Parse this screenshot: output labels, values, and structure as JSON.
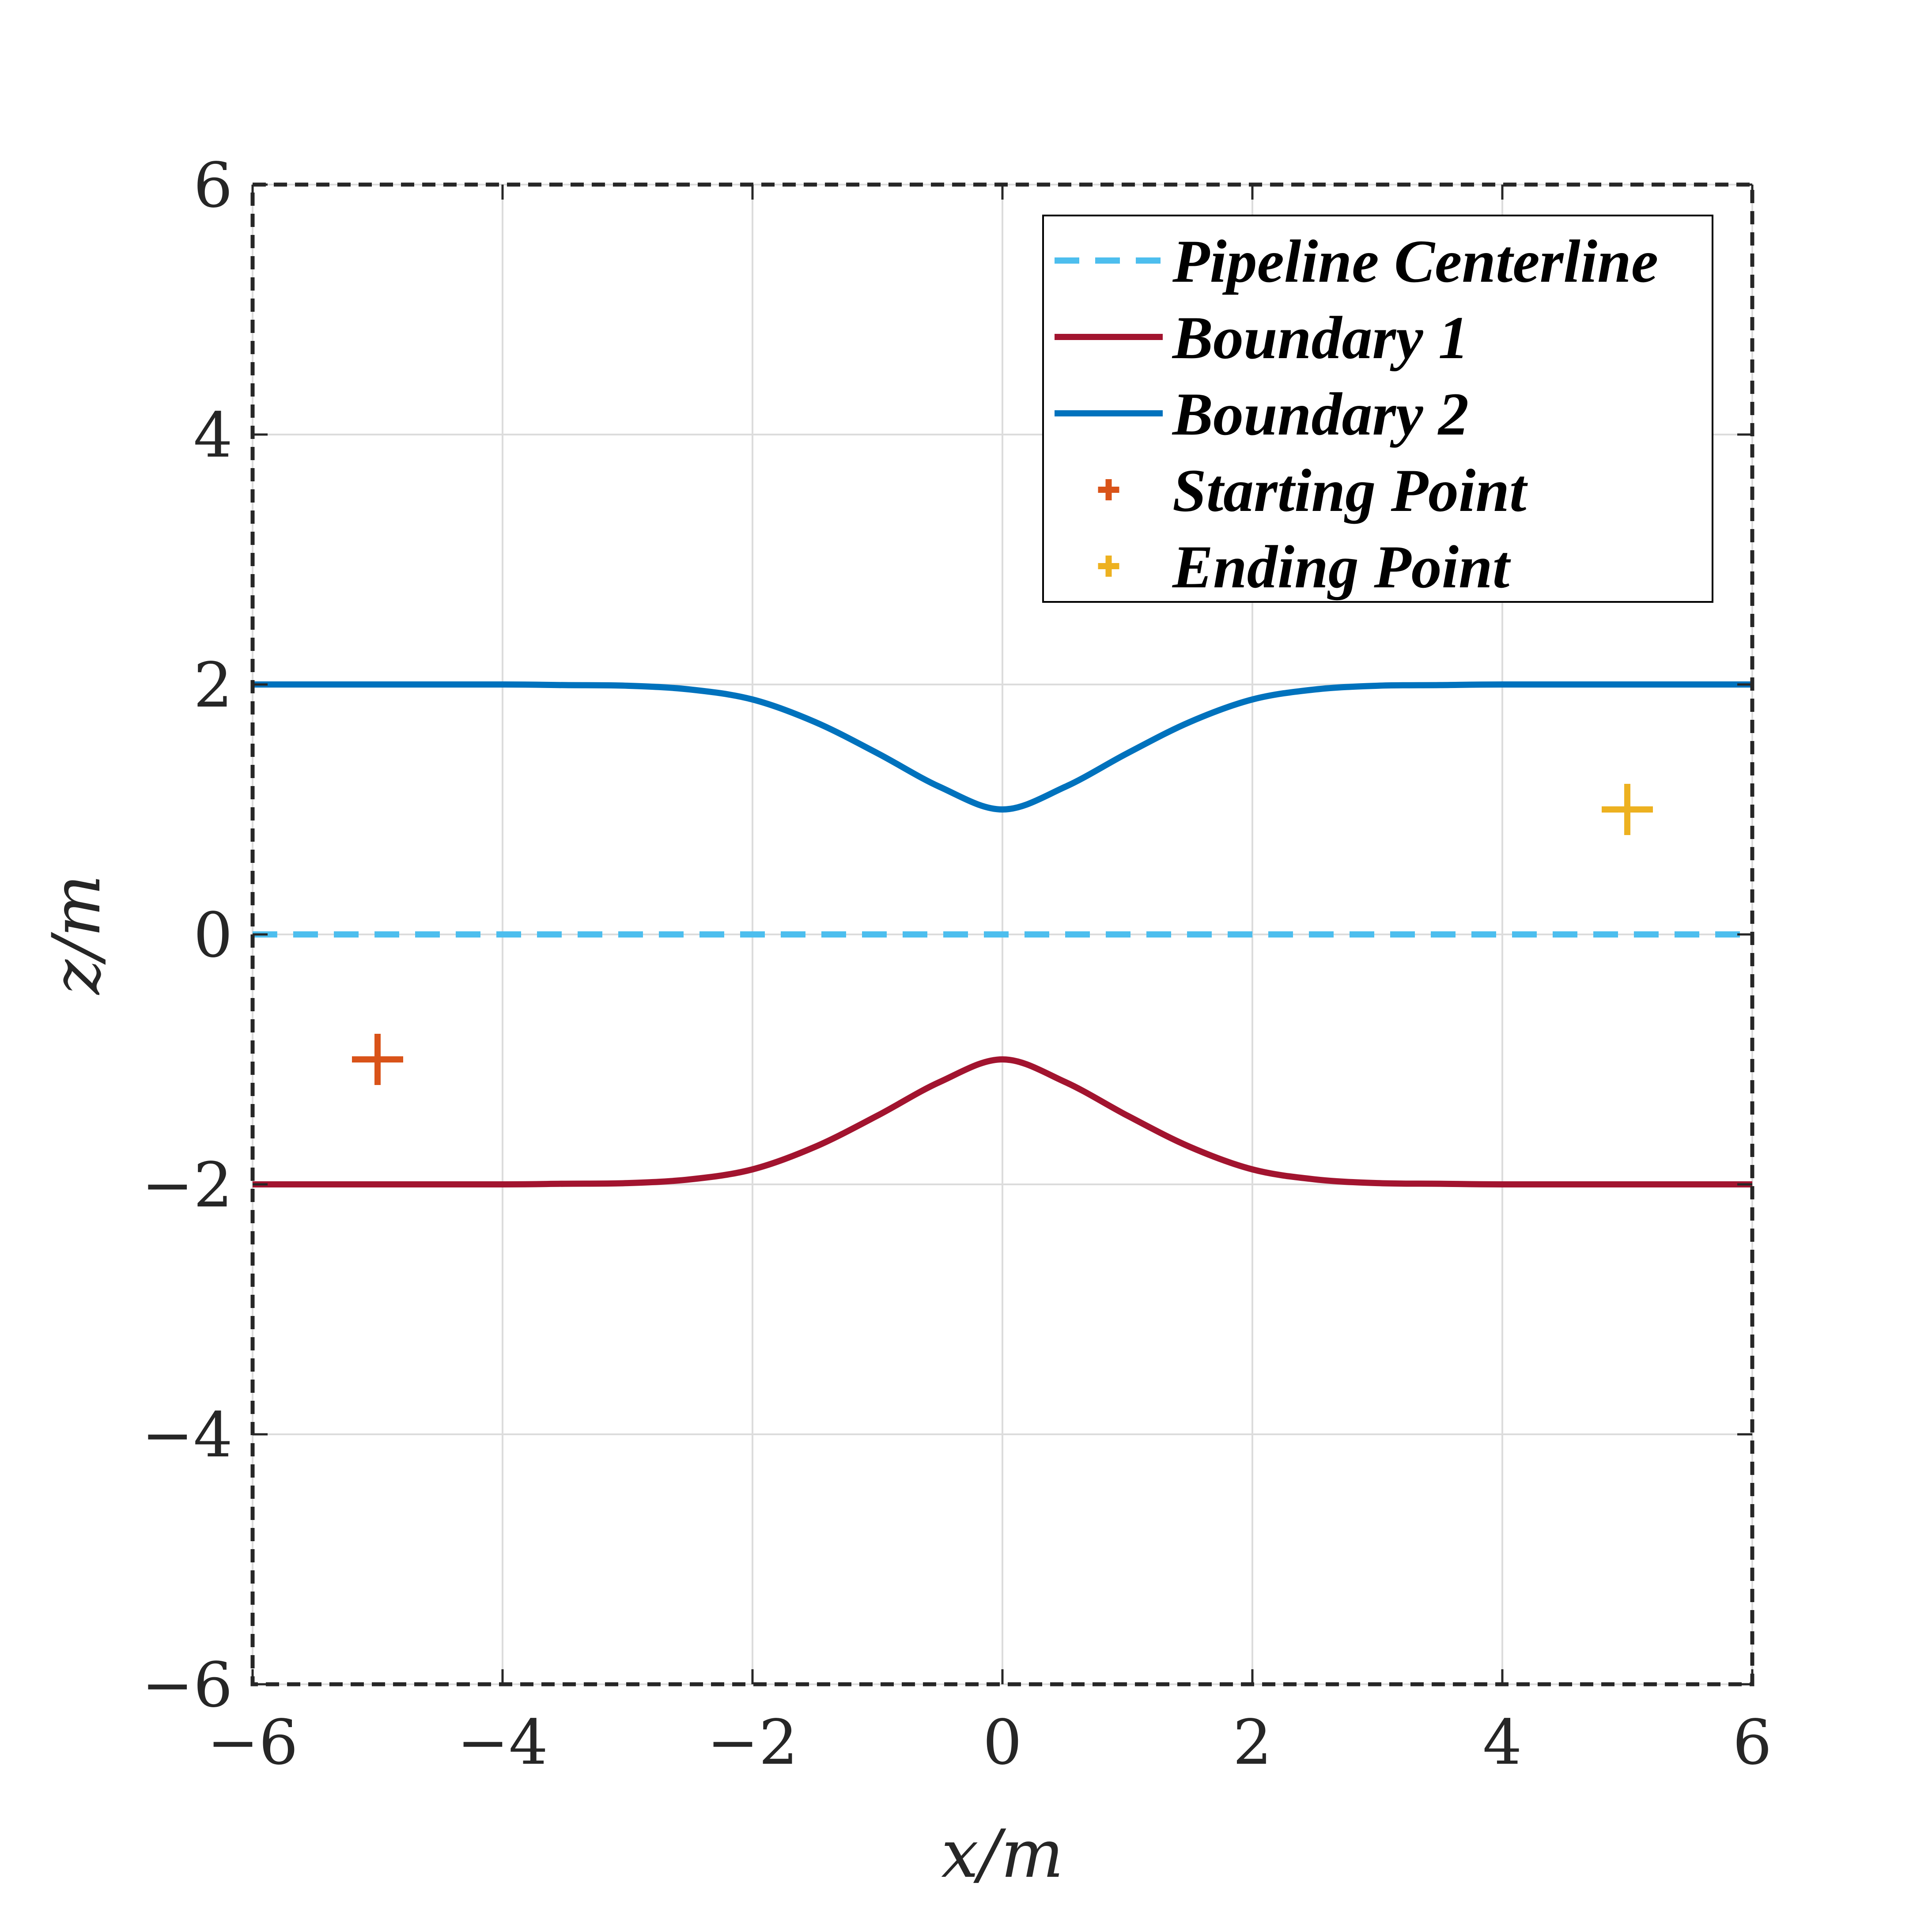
{
  "chart_data": {
    "type": "line",
    "title": "",
    "xlabel": "x/m",
    "ylabel": "z/m",
    "xlim": [
      -6,
      6
    ],
    "ylim": [
      -6,
      6
    ],
    "xticks": [
      -6,
      -4,
      -2,
      0,
      2,
      4,
      6
    ],
    "yticks": [
      -6,
      -4,
      -2,
      0,
      2,
      4,
      6
    ],
    "xtick_labels": [
      "−6",
      "−4",
      "−2",
      "0",
      "2",
      "4",
      "6"
    ],
    "ytick_labels": [
      "−6",
      "−4",
      "−2",
      "0",
      "2",
      "4",
      "6"
    ],
    "grid": true,
    "legend_position": "top-right",
    "series": [
      {
        "name": "Pipeline Centerline",
        "style": "dashed",
        "color": "#4DBEEE",
        "x": [
          -6,
          -5,
          -4,
          -3,
          -2,
          -1,
          0,
          1,
          2,
          3,
          4,
          5,
          6
        ],
        "y": [
          0,
          0,
          0,
          0,
          0,
          0,
          0,
          0,
          0,
          0,
          0,
          0,
          0
        ]
      },
      {
        "name": "Boundary 1",
        "style": "solid",
        "color": "#A2142F",
        "x": [
          -6,
          -5,
          -4,
          -3.5,
          -3,
          -2.5,
          -2,
          -1.5,
          -1,
          -0.5,
          0,
          0.5,
          1,
          1.5,
          2,
          2.5,
          3,
          3.5,
          4,
          5,
          6
        ],
        "y": [
          -2,
          -2,
          -2,
          -1.995,
          -1.99,
          -1.96,
          -1.88,
          -1.7,
          -1.45,
          -1.18,
          -1.0,
          -1.18,
          -1.45,
          -1.7,
          -1.88,
          -1.96,
          -1.99,
          -1.995,
          -2,
          -2,
          -2
        ]
      },
      {
        "name": "Boundary 2",
        "style": "solid",
        "color": "#0072BD",
        "x": [
          -6,
          -5,
          -4,
          -3.5,
          -3,
          -2.5,
          -2,
          -1.5,
          -1,
          -0.5,
          0,
          0.5,
          1,
          1.5,
          2,
          2.5,
          3,
          3.5,
          4,
          5,
          6
        ],
        "y": [
          2,
          2,
          2,
          1.995,
          1.99,
          1.96,
          1.88,
          1.7,
          1.45,
          1.18,
          1.0,
          1.18,
          1.45,
          1.7,
          1.88,
          1.96,
          1.99,
          1.995,
          2,
          2,
          2
        ]
      }
    ],
    "points": [
      {
        "name": "Starting Point",
        "marker": "+",
        "color": "#D95319",
        "x": -5,
        "y": -1
      },
      {
        "name": "Ending Point",
        "marker": "+",
        "color": "#EDB120",
        "x": 5,
        "y": 1
      }
    ]
  }
}
